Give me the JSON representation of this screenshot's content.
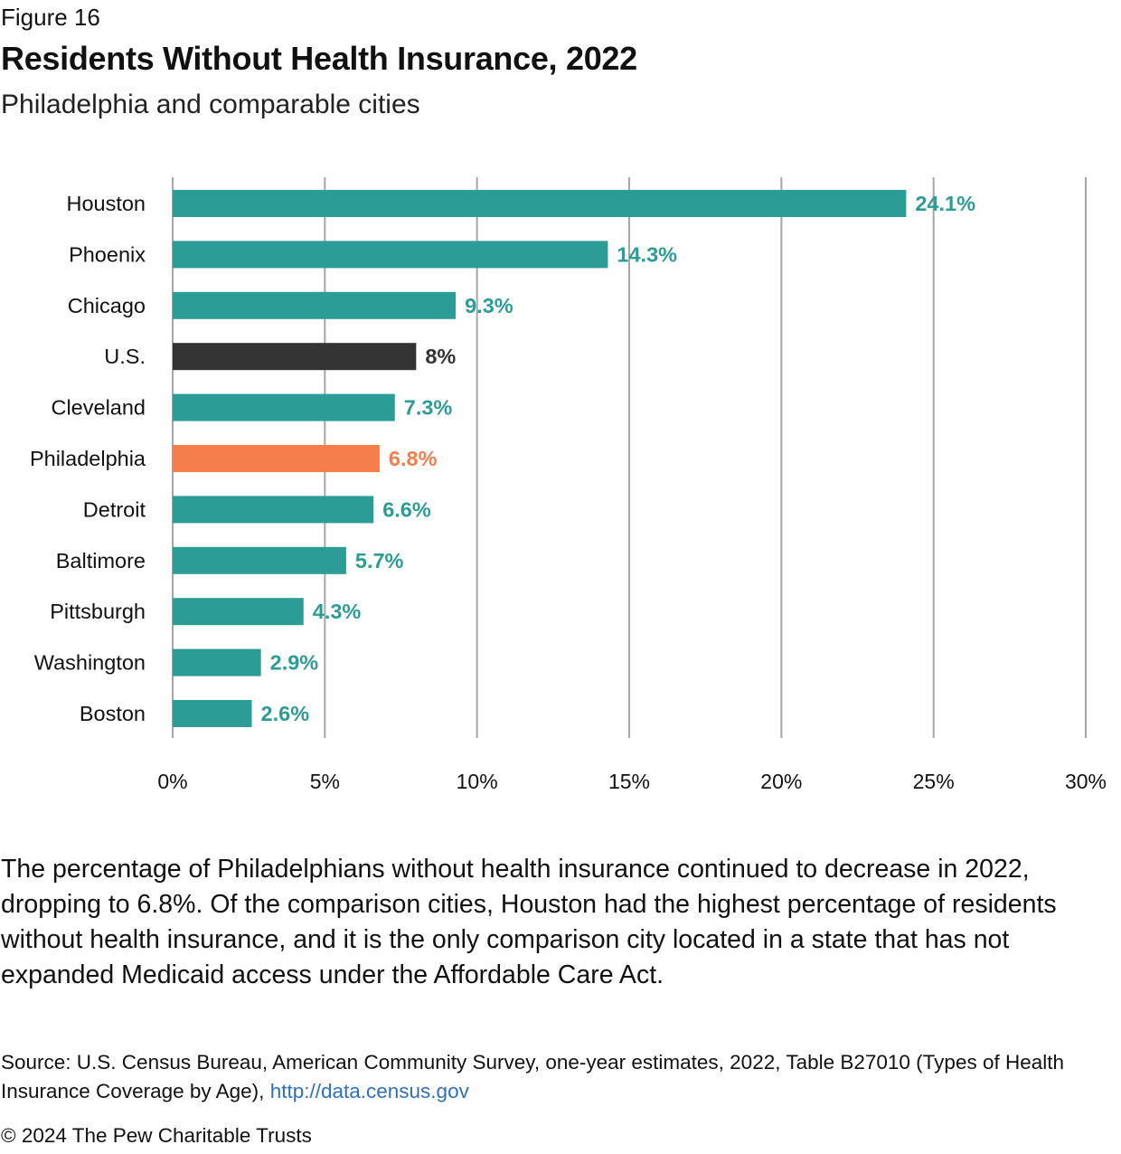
{
  "figure_label": "Figure 16",
  "title": "Residents Without Health Insurance, 2022",
  "subtitle": "Philadelphia and comparable cities",
  "description": "The percentage of Philadelphians without health insurance continued to decrease in 2022, dropping to 6.8%. Of the comparison cities, Houston had the highest percentage of residents without health insurance, and it is the only comparison city located in a state that has not expanded Medicaid access under the Affordable Care Act.",
  "source": {
    "text": "Source: U.S. Census Bureau, American Community Survey, one-year estimates, 2022, Table B27010 (Types of Health Insurance Coverage by Age), ",
    "link_text": "http://data.census.gov"
  },
  "copyright": "© 2024 The Pew Charitable Trusts",
  "colors": {
    "city": "#2c9c96",
    "us": "#333333",
    "philadelphia": "#f47f4c",
    "grid": "#a6a6a6",
    "link": "#2f6fbf"
  },
  "chart_data": {
    "type": "bar",
    "orientation": "horizontal",
    "title": "Residents Without Health Insurance, 2022",
    "subtitle": "Philadelphia and comparable cities",
    "xlabel": "",
    "ylabel": "",
    "xlim": [
      0,
      30
    ],
    "x_ticks": [
      0,
      5,
      10,
      15,
      20,
      25,
      30
    ],
    "x_tick_labels": [
      "0%",
      "5%",
      "10%",
      "15%",
      "20%",
      "25%",
      "30%"
    ],
    "grid": "vertical",
    "legend": "none",
    "categories": [
      "Houston",
      "Phoenix",
      "Chicago",
      "U.S.",
      "Cleveland",
      "Philadelphia",
      "Detroit",
      "Baltimore",
      "Pittsburgh",
      "Washington",
      "Boston"
    ],
    "values": [
      24.1,
      14.3,
      9.3,
      8,
      7.3,
      6.8,
      6.6,
      5.7,
      4.3,
      2.9,
      2.6
    ],
    "data_labels": [
      "24.1%",
      "14.3%",
      "9.3%",
      "8%",
      "7.3%",
      "6.8%",
      "6.6%",
      "5.7%",
      "4.3%",
      "2.9%",
      "2.6%"
    ],
    "bar_color_roles": [
      "city",
      "city",
      "city",
      "us",
      "city",
      "philadelphia",
      "city",
      "city",
      "city",
      "city",
      "city"
    ]
  }
}
